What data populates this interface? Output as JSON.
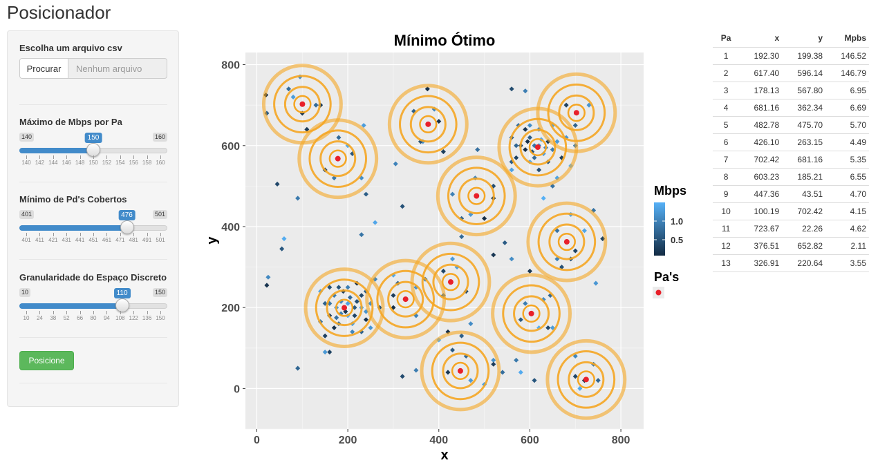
{
  "app": {
    "title": "Posicionador"
  },
  "sidebar": {
    "file_label": "Escolha um arquivo csv",
    "file_button": "Procurar",
    "file_placeholder": "Nenhum arquivo",
    "sliders": [
      {
        "label": "Máximo de Mbps por Pa",
        "min": 140,
        "max": 160,
        "value": 150,
        "ticks": [
          "140",
          "142",
          "144",
          "146",
          "148",
          "150",
          "152",
          "154",
          "156",
          "158",
          "160"
        ]
      },
      {
        "label": "Mínimo de Pd's Cobertos",
        "min": 401,
        "max": 501,
        "value": 476,
        "ticks": [
          "401",
          "411",
          "421",
          "431",
          "441",
          "451",
          "461",
          "471",
          "481",
          "491",
          "501"
        ]
      },
      {
        "label": "Granularidade do Espaço Discreto",
        "min": 10,
        "max": 150,
        "value": 110,
        "ticks": [
          "10",
          "24",
          "38",
          "52",
          "66",
          "80",
          "94",
          "108",
          "122",
          "136",
          "150"
        ]
      }
    ],
    "run_button": "Posicione"
  },
  "chart_data": {
    "type": "scatter",
    "title": "Mínimo Ótimo",
    "xlabel": "x",
    "ylabel": "y",
    "xlim": [
      -25,
      850
    ],
    "ylim": [
      -100,
      830
    ],
    "xticks": [
      0,
      200,
      400,
      600,
      800
    ],
    "yticks": [
      0,
      200,
      400,
      600,
      800
    ],
    "grid": true,
    "legend": {
      "placement": "right",
      "color_title": "Mbps",
      "color_ticks": [
        "1.0",
        "0.5"
      ],
      "color_range": [
        "#132b43",
        "#56b1f7"
      ],
      "point_title": "Pa's",
      "point_color": "#e8202a"
    },
    "ring_color": "#f5a623",
    "pas": [
      {
        "x": 192.3,
        "y": 199.38
      },
      {
        "x": 617.4,
        "y": 596.14
      },
      {
        "x": 178.13,
        "y": 567.8
      },
      {
        "x": 681.16,
        "y": 362.34
      },
      {
        "x": 482.78,
        "y": 475.7
      },
      {
        "x": 426.1,
        "y": 263.15
      },
      {
        "x": 702.42,
        "y": 681.16
      },
      {
        "x": 603.23,
        "y": 185.21
      },
      {
        "x": 447.36,
        "y": 43.51
      },
      {
        "x": 100.19,
        "y": 702.42
      },
      {
        "x": 723.67,
        "y": 22.26
      },
      {
        "x": 376.51,
        "y": 652.82
      },
      {
        "x": 326.91,
        "y": 220.64
      }
    ],
    "points": [
      [
        20,
        725
      ],
      [
        22,
        680
      ],
      [
        95,
        770
      ],
      [
        140,
        700
      ],
      [
        180,
        620
      ],
      [
        235,
        650
      ],
      [
        45,
        505
      ],
      [
        90,
        470
      ],
      [
        60,
        370
      ],
      [
        55,
        345
      ],
      [
        25,
        275
      ],
      [
        22,
        255
      ],
      [
        90,
        50
      ],
      [
        150,
        90
      ],
      [
        160,
        90
      ],
      [
        230,
        380
      ],
      [
        260,
        410
      ],
      [
        320,
        450
      ],
      [
        305,
        555
      ],
      [
        375,
        740
      ],
      [
        345,
        685
      ],
      [
        365,
        610
      ],
      [
        410,
        585
      ],
      [
        485,
        590
      ],
      [
        560,
        540
      ],
      [
        560,
        740
      ],
      [
        590,
        735
      ],
      [
        630,
        470
      ],
      [
        545,
        360
      ],
      [
        560,
        320
      ],
      [
        600,
        290
      ],
      [
        645,
        230
      ],
      [
        650,
        150
      ],
      [
        640,
        150
      ],
      [
        570,
        70
      ],
      [
        580,
        40
      ],
      [
        610,
        20
      ],
      [
        700,
        80
      ],
      [
        720,
        20
      ],
      [
        750,
        20
      ],
      [
        745,
        260
      ],
      [
        760,
        370
      ],
      [
        740,
        440
      ],
      [
        690,
        430
      ],
      [
        670,
        300
      ],
      [
        660,
        320
      ],
      [
        420,
        140
      ],
      [
        450,
        130
      ],
      [
        520,
        70
      ],
      [
        520,
        60
      ],
      [
        540,
        40
      ],
      [
        500,
        10
      ],
      [
        320,
        30
      ],
      [
        350,
        45
      ],
      [
        400,
        120
      ],
      [
        430,
        95
      ],
      [
        470,
        160
      ],
      [
        520,
        330
      ],
      [
        450,
        375
      ],
      [
        430,
        320
      ],
      [
        410,
        290
      ],
      [
        370,
        270
      ],
      [
        300,
        280
      ],
      [
        270,
        200
      ],
      [
        260,
        270
      ],
      [
        240,
        170
      ],
      [
        230,
        140
      ],
      [
        250,
        150
      ],
      [
        150,
        130
      ],
      [
        140,
        165
      ],
      [
        140,
        240
      ],
      [
        160,
        250
      ],
      [
        200,
        250
      ],
      [
        220,
        260
      ],
      [
        240,
        240
      ],
      [
        250,
        210
      ],
      [
        160,
        180
      ],
      [
        180,
        160
      ],
      [
        210,
        160
      ],
      [
        230,
        230
      ],
      [
        170,
        230
      ],
      [
        200,
        180
      ],
      [
        215,
        200
      ],
      [
        185,
        215
      ],
      [
        195,
        190
      ],
      [
        205,
        225
      ],
      [
        175,
        200
      ],
      [
        215,
        180
      ],
      [
        160,
        210
      ],
      [
        230,
        200
      ],
      [
        180,
        250
      ],
      [
        210,
        140
      ],
      [
        170,
        150
      ],
      [
        150,
        210
      ],
      [
        240,
        190
      ],
      [
        190,
        240
      ],
      [
        175,
        175
      ],
      [
        200,
        210
      ],
      [
        220,
        215
      ],
      [
        185,
        185
      ],
      [
        590,
        590
      ],
      [
        600,
        620
      ],
      [
        620,
        600
      ],
      [
        640,
        610
      ],
      [
        610,
        570
      ],
      [
        630,
        580
      ],
      [
        580,
        600
      ],
      [
        650,
        590
      ],
      [
        600,
        560
      ],
      [
        640,
        560
      ],
      [
        620,
        640
      ],
      [
        590,
        640
      ],
      [
        570,
        600
      ],
      [
        660,
        610
      ],
      [
        570,
        570
      ],
      [
        610,
        600
      ],
      [
        625,
        615
      ],
      [
        605,
        585
      ],
      [
        635,
        595
      ],
      [
        595,
        610
      ],
      [
        560,
        620
      ],
      [
        680,
        620
      ],
      [
        670,
        570
      ],
      [
        575,
        650
      ],
      [
        650,
        650
      ],
      [
        620,
        540
      ],
      [
        700,
        600
      ],
      [
        690,
        550
      ],
      [
        560,
        560
      ],
      [
        600,
        650
      ],
      [
        100,
        680
      ],
      [
        130,
        700
      ],
      [
        80,
        720
      ],
      [
        150,
        540
      ],
      [
        170,
        520
      ],
      [
        200,
        600
      ],
      [
        210,
        580
      ],
      [
        480,
        520
      ],
      [
        520,
        470
      ],
      [
        450,
        420
      ],
      [
        470,
        430
      ],
      [
        700,
        340
      ],
      [
        660,
        390
      ],
      [
        720,
        390
      ],
      [
        690,
        320
      ],
      [
        350,
        180
      ],
      [
        300,
        200
      ],
      [
        310,
        260
      ],
      [
        350,
        250
      ],
      [
        300,
        230
      ],
      [
        410,
        230
      ],
      [
        440,
        300
      ],
      [
        460,
        240
      ],
      [
        590,
        210
      ],
      [
        620,
        150
      ],
      [
        580,
        170
      ],
      [
        630,
        220
      ],
      [
        420,
        40
      ],
      [
        460,
        80
      ],
      [
        470,
        20
      ],
      [
        700,
        30
      ],
      [
        740,
        60
      ],
      [
        710,
        0
      ],
      [
        360,
        610
      ],
      [
        390,
        690
      ],
      [
        400,
        660
      ],
      [
        700,
        650
      ],
      [
        730,
        700
      ],
      [
        680,
        700
      ],
      [
        650,
        500
      ],
      [
        660,
        520
      ],
      [
        520,
        500
      ],
      [
        430,
        480
      ],
      [
        500,
        420
      ],
      [
        240,
        480
      ],
      [
        230,
        520
      ],
      [
        110,
        640
      ],
      [
        70,
        740
      ]
    ]
  },
  "table": {
    "headers": [
      "Pa",
      "x",
      "y",
      "Mpbs"
    ],
    "rows": [
      [
        "1",
        "192.30",
        "199.38",
        "146.52"
      ],
      [
        "2",
        "617.40",
        "596.14",
        "146.79"
      ],
      [
        "3",
        "178.13",
        "567.80",
        "6.95"
      ],
      [
        "4",
        "681.16",
        "362.34",
        "6.69"
      ],
      [
        "5",
        "482.78",
        "475.70",
        "5.70"
      ],
      [
        "6",
        "426.10",
        "263.15",
        "4.49"
      ],
      [
        "7",
        "702.42",
        "681.16",
        "5.35"
      ],
      [
        "8",
        "603.23",
        "185.21",
        "6.55"
      ],
      [
        "9",
        "447.36",
        "43.51",
        "4.70"
      ],
      [
        "10",
        "100.19",
        "702.42",
        "4.15"
      ],
      [
        "11",
        "723.67",
        "22.26",
        "4.62"
      ],
      [
        "12",
        "376.51",
        "652.82",
        "2.11"
      ],
      [
        "13",
        "326.91",
        "220.64",
        "3.55"
      ]
    ]
  }
}
